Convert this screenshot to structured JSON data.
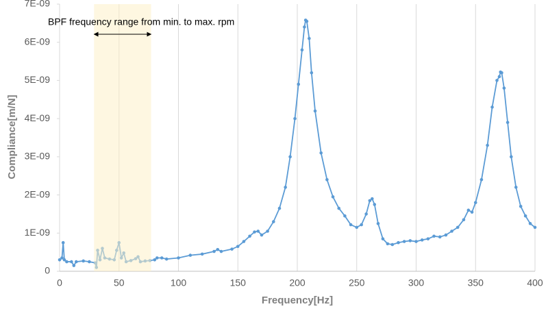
{
  "chart_data": {
    "type": "line",
    "xlabel": "Frequency[Hz]",
    "ylabel": "Compliance[m/N]",
    "annotation": "BPF frequency range from min. to max. rpm",
    "band": [
      29,
      77
    ],
    "band_color": "#fdf0c8",
    "color": "#5b9bd5",
    "grid": true,
    "xlim": [
      0,
      400
    ],
    "xticks": [
      0,
      50,
      100,
      150,
      200,
      250,
      300,
      350,
      400
    ],
    "ylim": [
      0,
      7e-09
    ],
    "yticks": [
      0,
      {
        "value": 1e-09,
        "label": "1E-09"
      },
      {
        "value": 2e-09,
        "label": "2E-09"
      },
      {
        "value": 3e-09,
        "label": "3E-09"
      },
      {
        "value": 4e-09,
        "label": "4E-09"
      },
      {
        "value": 5e-09,
        "label": "5E-09"
      },
      {
        "value": 6e-09,
        "label": "6E-09"
      },
      {
        "value": 7e-09,
        "label": "7E-09"
      }
    ],
    "x": [
      0,
      2,
      3,
      4,
      6,
      10,
      12,
      14,
      20,
      25,
      30,
      31,
      32,
      34,
      36,
      38,
      42,
      46,
      48,
      50,
      52,
      54,
      56,
      60,
      64,
      66,
      68,
      72,
      76,
      80,
      82,
      86,
      90,
      100,
      110,
      120,
      130,
      133,
      136,
      145,
      150,
      155,
      160,
      164,
      167,
      170,
      175,
      180,
      185,
      190,
      194,
      198,
      201,
      204,
      206,
      207,
      208,
      210,
      212,
      215,
      220,
      225,
      230,
      235,
      240,
      245,
      250,
      254,
      258,
      261,
      263,
      265,
      268,
      272,
      276,
      280,
      285,
      290,
      295,
      300,
      305,
      310,
      315,
      320,
      325,
      330,
      335,
      340,
      344,
      347,
      350,
      355,
      360,
      364,
      368,
      370,
      371,
      372,
      374,
      377,
      380,
      384,
      388,
      392,
      396,
      400
    ],
    "values": [
      3e-10,
      3.5e-10,
      7.5e-10,
      3e-10,
      2.5e-10,
      2.5e-10,
      1.5e-10,
      2.5e-10,
      2.7e-10,
      2.5e-10,
      2.2e-10,
      1e-10,
      5.5e-10,
      3e-10,
      6e-10,
      3.5e-10,
      3.2e-10,
      3e-10,
      5.5e-10,
      7.5e-10,
      3.5e-10,
      4.8e-10,
      2.5e-10,
      2.8e-10,
      3.3e-10,
      3.8e-10,
      2.5e-10,
      2.7e-10,
      2.8e-10,
      3e-10,
      3.5e-10,
      3.5e-10,
      3.2e-10,
      3.5e-10,
      4.2e-10,
      4.5e-10,
      5.2e-10,
      5.7e-10,
      5.2e-10,
      5.8e-10,
      6.5e-10,
      7.8e-10,
      9.2e-10,
      1.03e-09,
      1.05e-09,
      9.5e-10,
      1.05e-09,
      1.3e-09,
      1.65e-09,
      2.2e-09,
      3e-09,
      4e-09,
      4.9e-09,
      5.8e-09,
      6.4e-09,
      6.58e-09,
      6.55e-09,
      6.1e-09,
      5.2e-09,
      4.2e-09,
      3.1e-09,
      2.4e-09,
      1.95e-09,
      1.65e-09,
      1.45e-09,
      1.22e-09,
      1.15e-09,
      1.22e-09,
      1.5e-09,
      1.85e-09,
      1.9e-09,
      1.75e-09,
      1.25e-09,
      8.5e-10,
      7.2e-10,
      7e-10,
      7.5e-10,
      7.8e-10,
      8e-10,
      7.8e-10,
      8.2e-10,
      8.5e-10,
      9.2e-10,
      9e-10,
      9.5e-10,
      1.05e-09,
      1.15e-09,
      1.35e-09,
      1.6e-09,
      1.55e-09,
      1.8e-09,
      2.4e-09,
      3.3e-09,
      4.3e-09,
      5e-09,
      5.1e-09,
      5.22e-09,
      5.2e-09,
      4.8e-09,
      3.9e-09,
      3e-09,
      2.2e-09,
      1.7e-09,
      1.45e-09,
      1.25e-09,
      1.15e-09
    ]
  }
}
